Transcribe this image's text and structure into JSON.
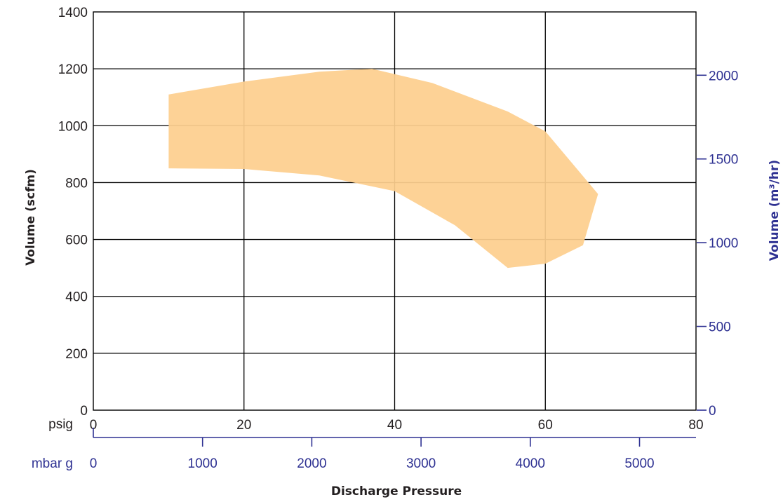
{
  "chart_data": {
    "type": "area",
    "xlabel": "Discharge Pressure",
    "ylabel": "Volume (scfm)",
    "y2label": "Volume (m³/hr)",
    "x_unit_label": "psig",
    "x2_unit_label": "mbar g",
    "xlim": [
      0,
      80
    ],
    "ylim": [
      0,
      1400
    ],
    "x2lim": [
      0,
      5517
    ],
    "y2lim": [
      0,
      2378
    ],
    "x_ticks": [
      "0",
      "20",
      "40",
      "60",
      "80"
    ],
    "y_ticks": [
      "0",
      "200",
      "400",
      "600",
      "800",
      "1000",
      "1200",
      "1400"
    ],
    "x2_ticks": [
      "0",
      "1000",
      "2000",
      "3000",
      "4000",
      "5000"
    ],
    "y2_ticks": [
      "0",
      "500",
      "1000",
      "1500",
      "2000"
    ],
    "grid": true,
    "region_color": "#FDCF8E",
    "secondary_axis_color": "#2E3192",
    "region": {
      "upper": [
        [
          10,
          1110
        ],
        [
          20,
          1155
        ],
        [
          30,
          1190
        ],
        [
          37,
          1200
        ],
        [
          45,
          1150
        ],
        [
          55,
          1050
        ],
        [
          60,
          980
        ],
        [
          67,
          760
        ]
      ],
      "lower": [
        [
          10,
          850
        ],
        [
          20,
          848
        ],
        [
          30,
          825
        ],
        [
          40,
          770
        ],
        [
          48,
          650
        ],
        [
          55,
          500
        ],
        [
          60,
          515
        ],
        [
          65,
          580
        ],
        [
          67,
          760
        ]
      ]
    }
  }
}
